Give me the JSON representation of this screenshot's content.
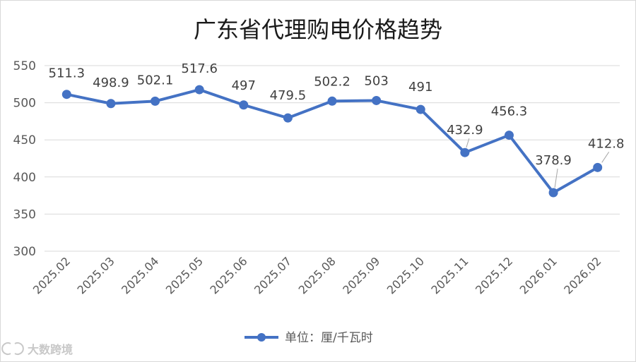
{
  "chart_data": {
    "type": "line",
    "title": "广东省代理购电价格趋势",
    "categories": [
      "2025.02",
      "2025.03",
      "2025.04",
      "2025.05",
      "2025.06",
      "2025.07",
      "2025.08",
      "2025.09",
      "2025.10",
      "2025.11",
      "2025.12",
      "2026.01",
      "2026.02"
    ],
    "series": [
      {
        "name": "单位：厘/千瓦时",
        "values": [
          511.3,
          498.9,
          502.1,
          517.6,
          497,
          479.5,
          502.2,
          503,
          491,
          432.9,
          456.3,
          378.9,
          412.8
        ],
        "labels": [
          "511.3",
          "498.9",
          "502.1",
          "517.6",
          "497",
          "479.5",
          "502.2",
          "503",
          "491",
          "432.9",
          "456.3",
          "378.9",
          "412.8"
        ],
        "color": "#4472c4"
      }
    ],
    "yticks": [
      300,
      350,
      400,
      450,
      500,
      550
    ],
    "ylim": [
      300,
      550
    ],
    "xlabel": "",
    "ylabel": "",
    "grid": true,
    "legend": "bottom"
  },
  "watermark": {
    "text": "大数跨境"
  }
}
